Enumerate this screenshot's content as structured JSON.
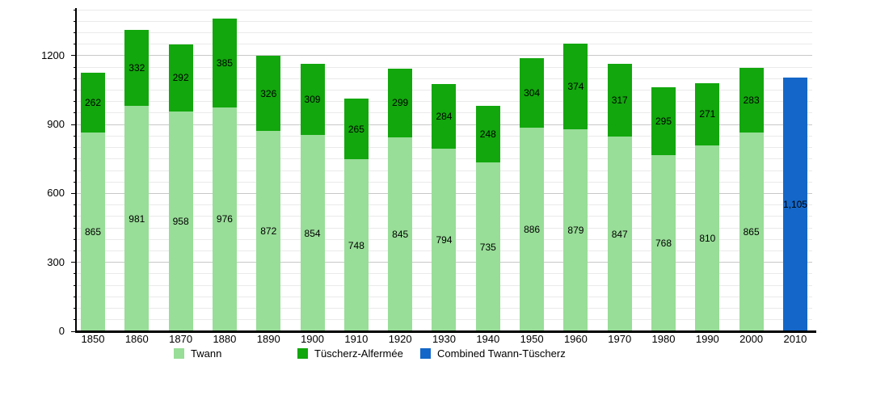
{
  "chart_data": {
    "type": "bar",
    "stacked": true,
    "title": "",
    "xlabel": "",
    "ylabel": "",
    "categories": [
      "1850",
      "1860",
      "1870",
      "1880",
      "1890",
      "1900",
      "1910",
      "1920",
      "1930",
      "1940",
      "1950",
      "1960",
      "1970",
      "1980",
      "1990",
      "2000",
      "2010"
    ],
    "series": [
      {
        "name": "Twann",
        "color": "#98DD98",
        "values": [
          865,
          981,
          958,
          976,
          872,
          854,
          748,
          845,
          794,
          735,
          886,
          879,
          847,
          768,
          810,
          865,
          null
        ]
      },
      {
        "name": "Tüscherz-Alfermée",
        "color": "#12A70D",
        "values": [
          262,
          332,
          292,
          385,
          326,
          309,
          265,
          299,
          284,
          248,
          304,
          374,
          317,
          295,
          271,
          283,
          null
        ]
      },
      {
        "name": "Combined Twann-Tüscherz",
        "color": "#1467C8",
        "values": [
          null,
          null,
          null,
          null,
          null,
          null,
          null,
          null,
          null,
          null,
          null,
          null,
          null,
          null,
          null,
          null,
          1105
        ]
      }
    ],
    "value_labels_shown": true,
    "combined_2010_label": "1,105",
    "ylim": [
      0,
      1400
    ],
    "yticks": [
      0,
      300,
      600,
      900,
      1200
    ],
    "minor_gridline_step": 50,
    "major_gridline_step": 300,
    "grid": true,
    "legend_position": "bottom"
  }
}
